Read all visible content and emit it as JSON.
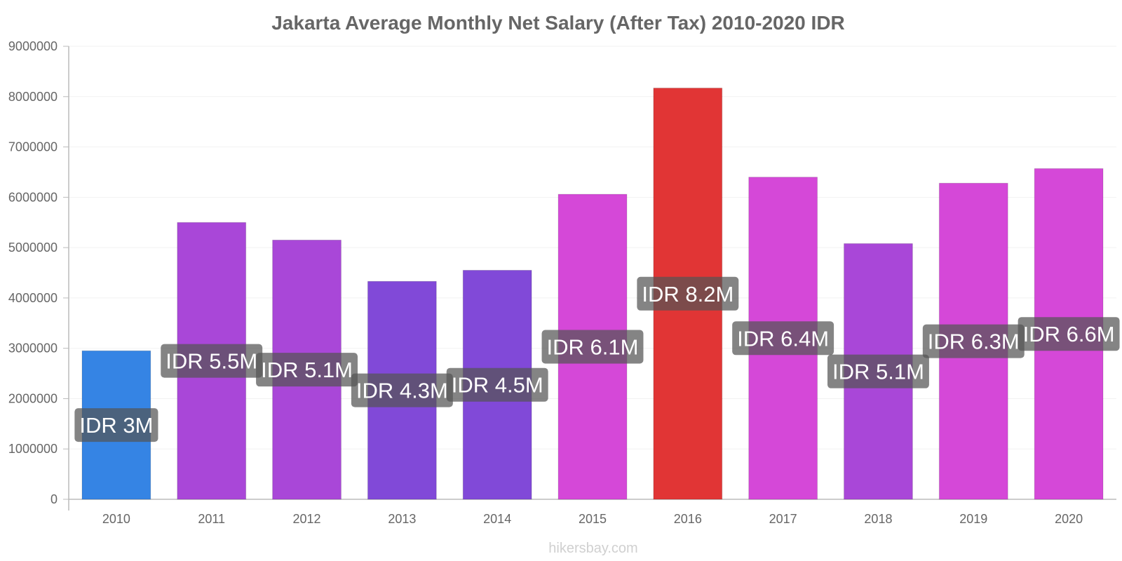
{
  "chart_data": {
    "type": "bar",
    "title": "Jakarta Average Monthly Net Salary (After Tax) 2010-2020 IDR",
    "xlabel": "",
    "ylabel": "",
    "ylim": [
      0,
      9000000
    ],
    "yticks": [
      "0",
      "1000000",
      "2000000",
      "3000000",
      "4000000",
      "5000000",
      "6000000",
      "7000000",
      "8000000",
      "9000000"
    ],
    "grid": true,
    "legend": "none",
    "categories": [
      "2010",
      "2011",
      "2012",
      "2013",
      "2014",
      "2015",
      "2016",
      "2017",
      "2018",
      "2019",
      "2020"
    ],
    "values": [
      2950000,
      5500000,
      5150000,
      4330000,
      4550000,
      6060000,
      8170000,
      6400000,
      5080000,
      6280000,
      6570000
    ],
    "value_labels": [
      "IDR 3M",
      "IDR 5.5M",
      "IDR 5.1M",
      "IDR 4.3M",
      "IDR 4.5M",
      "IDR 6.1M",
      "IDR 8.2M",
      "IDR 6.4M",
      "IDR 5.1M",
      "IDR 6.3M",
      "IDR 6.6M"
    ],
    "bar_colors": [
      "#3584e4",
      "#a947d8",
      "#a947d8",
      "#8149d8",
      "#8149d8",
      "#d548d8",
      "#e13535",
      "#d548d8",
      "#a947d8",
      "#d548d8",
      "#d548d8"
    ]
  },
  "watermark": "hikersbay.com",
  "colors": {
    "title": "#666666",
    "tick_text": "#666666",
    "grid": "#f2f2f2",
    "axis": "#bbbbbb",
    "label_box": "#555555",
    "label_text": "#ffffff",
    "watermark": "#d0d0d0"
  }
}
